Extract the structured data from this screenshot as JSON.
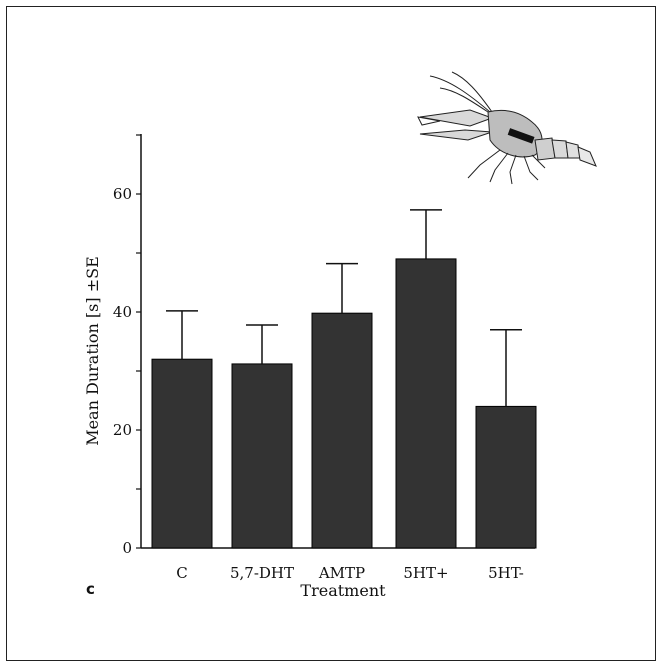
{
  "chart_data": {
    "type": "bar",
    "categories": [
      "C",
      "5,7-DHT",
      "AMTP",
      "5HT+",
      "5HT-"
    ],
    "values": [
      32,
      31.2,
      39.8,
      49,
      24
    ],
    "errors": [
      8.2,
      6.6,
      8.4,
      8.3,
      13
    ],
    "title": "",
    "xlabel": "Treatment",
    "ylabel": "Mean Duration [s] ±SE",
    "yticks": [
      "0",
      "20",
      "40",
      "60"
    ],
    "ylim": [
      0,
      70
    ],
    "grid": false,
    "bar_color": "#333333",
    "panel_label": "c",
    "illustration": "crayfish-icon"
  }
}
